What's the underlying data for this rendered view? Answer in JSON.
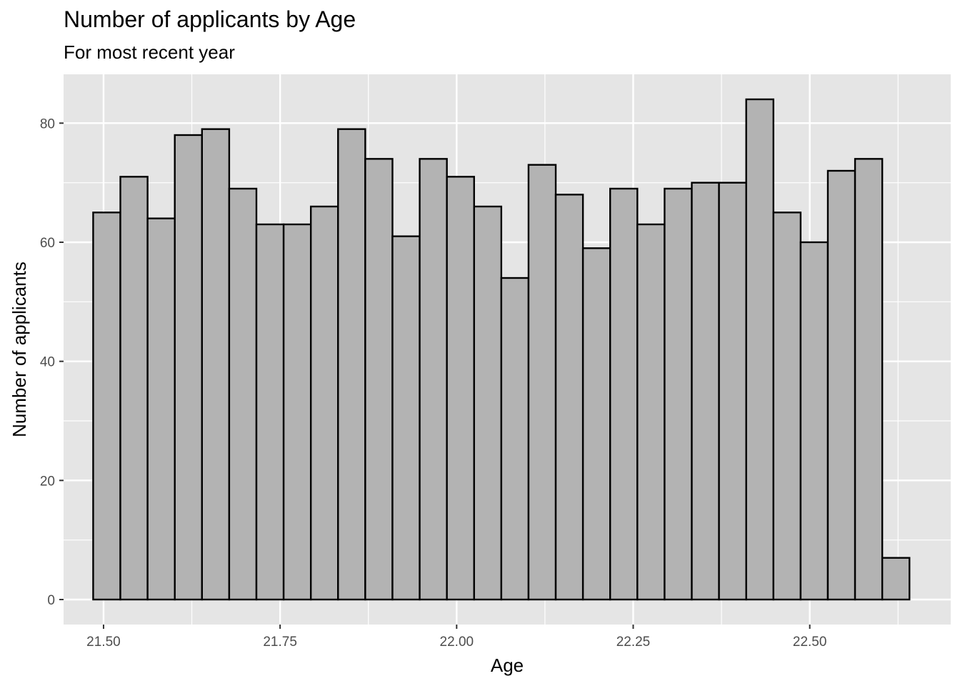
{
  "chart_data": {
    "type": "bar",
    "title": "Number of applicants by Age",
    "subtitle": "For most recent year",
    "xlabel": "Age",
    "ylabel": "Number of applicants",
    "bin_start": 21.4853,
    "bin_width": 0.03853,
    "values": [
      65,
      71,
      64,
      78,
      79,
      69,
      63,
      63,
      66,
      79,
      74,
      61,
      74,
      71,
      66,
      54,
      73,
      68,
      59,
      69,
      63,
      69,
      70,
      70,
      84,
      65,
      60,
      72,
      74,
      7
    ],
    "xlim": [
      21.4434,
      22.6996
    ],
    "ylim": [
      -4.2,
      88.2
    ],
    "x_ticks": [
      21.5,
      21.75,
      22.0,
      22.25,
      22.5
    ],
    "x_tick_labels": [
      "21.50",
      "21.75",
      "22.00",
      "22.25",
      "22.50"
    ],
    "y_ticks": [
      0,
      20,
      40,
      60,
      80
    ],
    "y_tick_labels": [
      "0",
      "20",
      "40",
      "60",
      "80"
    ],
    "grid": true,
    "colors": {
      "panel_background": "#e5e5e5",
      "grid_major": "#ffffff",
      "bar_fill": "#b3b3b3",
      "bar_outline": "#000000"
    }
  }
}
